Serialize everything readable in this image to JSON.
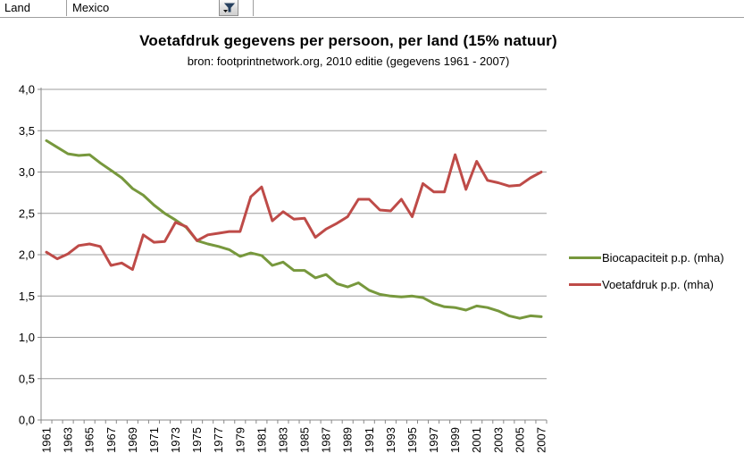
{
  "filter": {
    "label": "Land",
    "value": "Mexico",
    "button_icon": "funnel-filter-icon"
  },
  "chart_data": {
    "type": "line",
    "title": "Voetafdruk gegevens per persoon, per land (15% natuur)",
    "subtitle": "bron: footprintnetwork.org, 2010 editie (gegevens 1961 - 2007)",
    "x": [
      1961,
      1962,
      1963,
      1964,
      1965,
      1966,
      1967,
      1968,
      1969,
      1970,
      1971,
      1972,
      1973,
      1974,
      1975,
      1976,
      1977,
      1978,
      1979,
      1980,
      1981,
      1982,
      1983,
      1984,
      1985,
      1986,
      1987,
      1988,
      1989,
      1990,
      1991,
      1992,
      1993,
      1994,
      1995,
      1996,
      1997,
      1998,
      1999,
      2000,
      2001,
      2002,
      2003,
      2004,
      2005,
      2006,
      2007
    ],
    "x_label_every": 2,
    "ylim": [
      0,
      4
    ],
    "ytick_step": 0.5,
    "ytick_labels": [
      "0,0",
      "0,5",
      "1,0",
      "1,5",
      "2,0",
      "2,5",
      "3,0",
      "3,5",
      "4,0"
    ],
    "grid": true,
    "legend_position": "right",
    "series": [
      {
        "name": "Biocapaciteit p.p. (mha)",
        "color": "#77983D",
        "values": [
          3.38,
          3.3,
          3.22,
          3.2,
          3.21,
          3.11,
          3.02,
          2.93,
          2.8,
          2.72,
          2.6,
          2.5,
          2.42,
          2.33,
          2.17,
          2.13,
          2.1,
          2.06,
          1.98,
          2.02,
          1.99,
          1.87,
          1.91,
          1.81,
          1.81,
          1.72,
          1.76,
          1.65,
          1.61,
          1.66,
          1.57,
          1.52,
          1.5,
          1.49,
          1.5,
          1.48,
          1.41,
          1.37,
          1.36,
          1.33,
          1.38,
          1.36,
          1.32,
          1.26,
          1.23,
          1.26,
          1.25
        ]
      },
      {
        "name": "Voetafdruk p.p. (mha)",
        "color": "#BE4B48",
        "values": [
          2.03,
          1.95,
          2.01,
          2.11,
          2.13,
          2.1,
          1.87,
          1.9,
          1.82,
          2.24,
          2.15,
          2.16,
          2.39,
          2.34,
          2.17,
          2.24,
          2.26,
          2.28,
          2.28,
          2.7,
          2.82,
          2.41,
          2.52,
          2.43,
          2.44,
          2.21,
          2.31,
          2.38,
          2.46,
          2.67,
          2.67,
          2.54,
          2.53,
          2.67,
          2.46,
          2.86,
          2.76,
          2.76,
          3.21,
          2.79,
          3.13,
          2.9,
          2.87,
          2.83,
          2.84,
          2.93,
          3.0
        ]
      }
    ],
    "colors": {
      "gridline": "#9C9C9C",
      "axis": "#898989",
      "tick_text": "#000000"
    }
  }
}
